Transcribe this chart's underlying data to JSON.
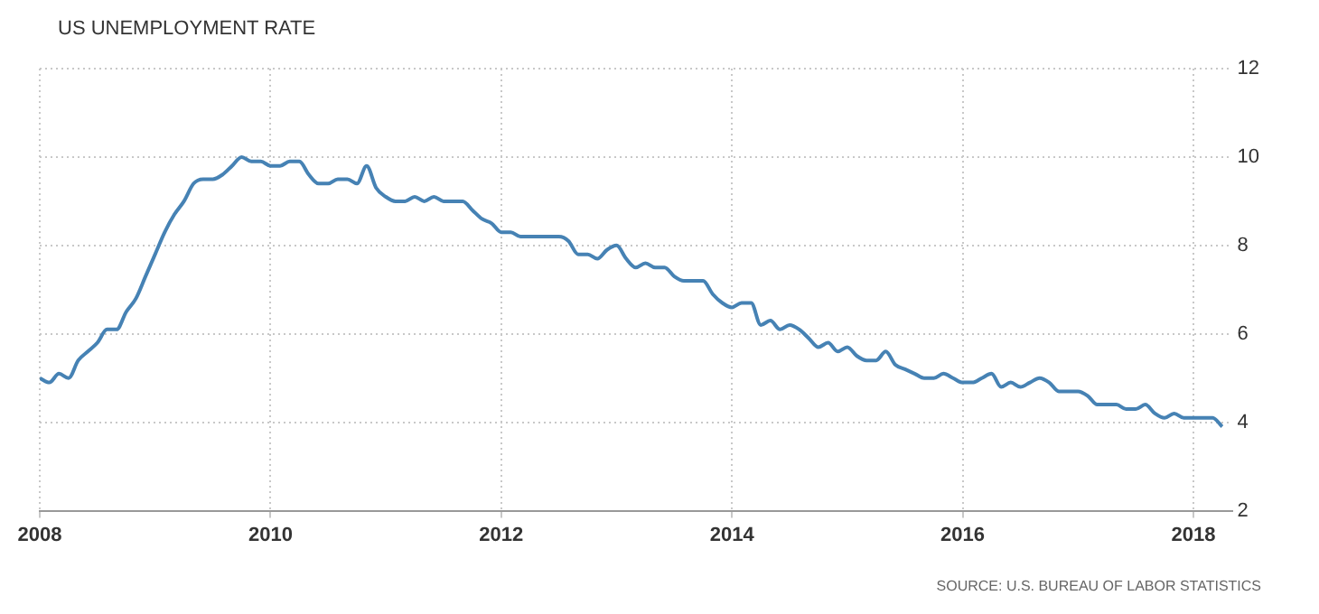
{
  "chart_data": {
    "type": "line",
    "title": "US UNEMPLOYMENT RATE",
    "annotations": [
      "SOURCE: U.S. BUREAU OF LABOR STATISTICS"
    ],
    "x": [
      "2008-01",
      "2008-02",
      "2008-03",
      "2008-04",
      "2008-05",
      "2008-06",
      "2008-07",
      "2008-08",
      "2008-09",
      "2008-10",
      "2008-11",
      "2008-12",
      "2009-01",
      "2009-02",
      "2009-03",
      "2009-04",
      "2009-05",
      "2009-06",
      "2009-07",
      "2009-08",
      "2009-09",
      "2009-10",
      "2009-11",
      "2009-12",
      "2010-01",
      "2010-02",
      "2010-03",
      "2010-04",
      "2010-05",
      "2010-06",
      "2010-07",
      "2010-08",
      "2010-09",
      "2010-10",
      "2010-11",
      "2010-12",
      "2011-01",
      "2011-02",
      "2011-03",
      "2011-04",
      "2011-05",
      "2011-06",
      "2011-07",
      "2011-08",
      "2011-09",
      "2011-10",
      "2011-11",
      "2011-12",
      "2012-01",
      "2012-02",
      "2012-03",
      "2012-04",
      "2012-05",
      "2012-06",
      "2012-07",
      "2012-08",
      "2012-09",
      "2012-10",
      "2012-11",
      "2012-12",
      "2013-01",
      "2013-02",
      "2013-03",
      "2013-04",
      "2013-05",
      "2013-06",
      "2013-07",
      "2013-08",
      "2013-09",
      "2013-10",
      "2013-11",
      "2013-12",
      "2014-01",
      "2014-02",
      "2014-03",
      "2014-04",
      "2014-05",
      "2014-06",
      "2014-07",
      "2014-08",
      "2014-09",
      "2014-10",
      "2014-11",
      "2014-12",
      "2015-01",
      "2015-02",
      "2015-03",
      "2015-04",
      "2015-05",
      "2015-06",
      "2015-07",
      "2015-08",
      "2015-09",
      "2015-10",
      "2015-11",
      "2015-12",
      "2016-01",
      "2016-02",
      "2016-03",
      "2016-04",
      "2016-05",
      "2016-06",
      "2016-07",
      "2016-08",
      "2016-09",
      "2016-10",
      "2016-11",
      "2016-12",
      "2017-01",
      "2017-02",
      "2017-03",
      "2017-04",
      "2017-05",
      "2017-06",
      "2017-07",
      "2017-08",
      "2017-09",
      "2017-10",
      "2017-11",
      "2017-12",
      "2018-01",
      "2018-02",
      "2018-03",
      "2018-04"
    ],
    "series": [
      {
        "color": "#4682b4",
        "values": [
          5.0,
          4.9,
          5.1,
          5.0,
          5.4,
          5.6,
          5.8,
          6.1,
          6.1,
          6.5,
          6.8,
          7.3,
          7.8,
          8.3,
          8.7,
          9.0,
          9.4,
          9.5,
          9.5,
          9.6,
          9.8,
          10.0,
          9.9,
          9.9,
          9.8,
          9.8,
          9.9,
          9.9,
          9.6,
          9.4,
          9.4,
          9.5,
          9.5,
          9.4,
          9.8,
          9.3,
          9.1,
          9.0,
          9.0,
          9.1,
          9.0,
          9.1,
          9.0,
          9.0,
          9.0,
          8.8,
          8.6,
          8.5,
          8.3,
          8.3,
          8.2,
          8.2,
          8.2,
          8.2,
          8.2,
          8.1,
          7.8,
          7.8,
          7.7,
          7.9,
          8.0,
          7.7,
          7.5,
          7.6,
          7.5,
          7.5,
          7.3,
          7.2,
          7.2,
          7.2,
          6.9,
          6.7,
          6.6,
          6.7,
          6.7,
          6.2,
          6.3,
          6.1,
          6.2,
          6.1,
          5.9,
          5.7,
          5.8,
          5.6,
          5.7,
          5.5,
          5.4,
          5.4,
          5.6,
          5.3,
          5.2,
          5.1,
          5.0,
          5.0,
          5.1,
          5.0,
          4.9,
          4.9,
          5.0,
          5.1,
          4.8,
          4.9,
          4.8,
          4.9,
          5.0,
          4.9,
          4.7,
          4.7,
          4.7,
          4.6,
          4.4,
          4.4,
          4.4,
          4.3,
          4.3,
          4.4,
          4.2,
          4.1,
          4.2,
          4.1,
          4.1,
          4.1,
          4.1,
          3.9
        ]
      }
    ],
    "xlim": [
      "2008-01",
      "2018-05"
    ],
    "xticks": [
      "2008",
      "2010",
      "2012",
      "2014",
      "2016",
      "2018"
    ],
    "ylim": [
      2,
      12
    ],
    "yticks": [
      2,
      4,
      6,
      8,
      10,
      12
    ],
    "grid": true,
    "legend": false,
    "marker": "none"
  }
}
